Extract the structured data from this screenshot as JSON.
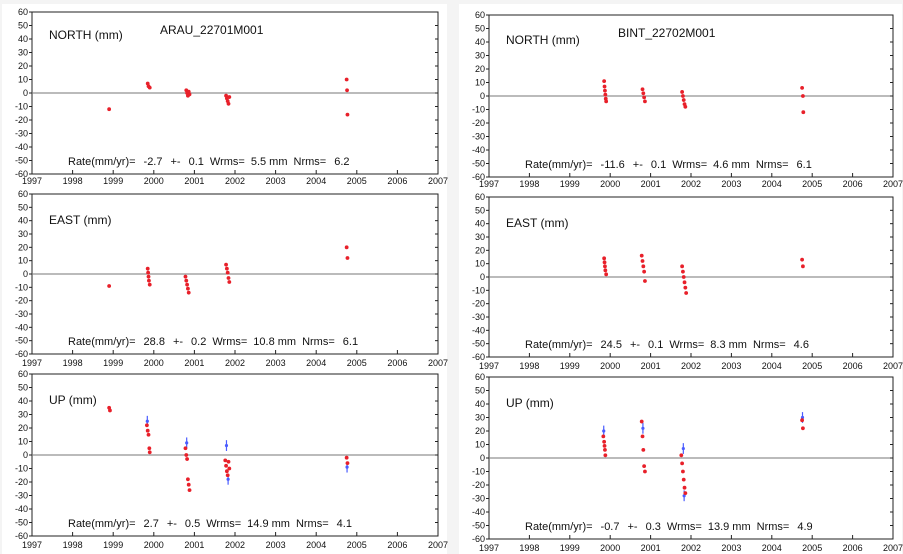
{
  "chart_data": [
    {
      "type": "scatter",
      "station": "ARAU_22701M001",
      "panels": [
        {
          "component": "NORTH (mm)",
          "ylim": [
            -60,
            60
          ],
          "y_ticks": [
            "60",
            "50",
            "40",
            "30",
            "20",
            "10",
            "0",
            "-10",
            "-20",
            "-30",
            "-40",
            "-50",
            "-60"
          ],
          "points": [
            [
              1998.9,
              -12
            ],
            [
              1999.85,
              7
            ],
            [
              1999.87,
              5
            ],
            [
              1999.9,
              4
            ],
            [
              2000.8,
              2
            ],
            [
              2000.82,
              0
            ],
            [
              2000.84,
              -2
            ],
            [
              2000.86,
              1
            ],
            [
              2000.88,
              -1
            ],
            [
              2001.78,
              -2
            ],
            [
              2001.8,
              -4
            ],
            [
              2001.82,
              -6
            ],
            [
              2001.84,
              -8
            ],
            [
              2001.86,
              -3
            ],
            [
              2004.75,
              10
            ],
            [
              2004.76,
              2
            ],
            [
              2004.77,
              -16
            ]
          ],
          "error_points": [],
          "stats": {
            "label": "Rate(mm/yr)=",
            "rate": "-2.7",
            "pm": "+-",
            "sigma": "0.1",
            "wrms_label": "Wrms=",
            "wrms": "5.5 mm",
            "nrms_label": "Nrms=",
            "nrms": "6.2"
          }
        },
        {
          "component": "EAST (mm)",
          "ylim": [
            -60,
            60
          ],
          "y_ticks": [
            "60",
            "50",
            "40",
            "30",
            "20",
            "10",
            "0",
            "-10",
            "-20",
            "-30",
            "-40",
            "-50",
            "-60"
          ],
          "points": [
            [
              1998.9,
              -9
            ],
            [
              1999.85,
              4
            ],
            [
              1999.86,
              1
            ],
            [
              1999.87,
              -2
            ],
            [
              1999.88,
              -5
            ],
            [
              1999.9,
              -8
            ],
            [
              2000.78,
              -2
            ],
            [
              2000.8,
              -5
            ],
            [
              2000.82,
              -8
            ],
            [
              2000.84,
              -11
            ],
            [
              2000.86,
              -14
            ],
            [
              2001.78,
              7
            ],
            [
              2001.8,
              4
            ],
            [
              2001.82,
              1
            ],
            [
              2001.84,
              -3
            ],
            [
              2001.86,
              -6
            ],
            [
              2004.75,
              20
            ],
            [
              2004.77,
              12
            ]
          ],
          "error_points": [],
          "stats": {
            "label": "Rate(mm/yr)=",
            "rate": "28.8",
            "pm": "+-",
            "sigma": "0.2",
            "wrms_label": "Wrms=",
            "wrms": "10.8 mm",
            "nrms_label": "Nrms=",
            "nrms": "6.1"
          }
        },
        {
          "component": "UP (mm)",
          "ylim": [
            -60,
            60
          ],
          "y_ticks": [
            "60",
            "50",
            "40",
            "30",
            "20",
            "10",
            "0",
            "-10",
            "-20",
            "-30",
            "-40",
            "-50",
            "-60"
          ],
          "points": [
            [
              1998.9,
              35
            ],
            [
              1998.92,
              33
            ],
            [
              1999.83,
              22
            ],
            [
              1999.85,
              18
            ],
            [
              1999.87,
              15
            ],
            [
              1999.89,
              5
            ],
            [
              1999.9,
              2
            ],
            [
              2000.78,
              5
            ],
            [
              2000.8,
              0
            ],
            [
              2000.82,
              -3
            ],
            [
              2000.84,
              -18
            ],
            [
              2000.86,
              -22
            ],
            [
              2000.88,
              -26
            ],
            [
              2001.76,
              -4
            ],
            [
              2001.78,
              -8
            ],
            [
              2001.8,
              -12
            ],
            [
              2001.82,
              -15
            ],
            [
              2001.84,
              -5
            ],
            [
              2001.86,
              -10
            ],
            [
              2004.75,
              -2
            ],
            [
              2004.77,
              -6
            ]
          ],
          "error_points": [
            [
              1999.84,
              25
            ],
            [
              2000.81,
              9
            ],
            [
              2001.79,
              7
            ],
            [
              2001.83,
              -18
            ],
            [
              2004.76,
              -9
            ]
          ],
          "stats": {
            "label": "Rate(mm/yr)=",
            "rate": "2.7",
            "pm": "+-",
            "sigma": "0.5",
            "wrms_label": "Wrms=",
            "wrms": "14.9 mm",
            "nrms_label": "Nrms=",
            "nrms": "4.1"
          }
        }
      ],
      "x_ticks": [
        "1997",
        "1998",
        "1999",
        "2000",
        "2001",
        "2002",
        "2003",
        "2004",
        "2005",
        "2006",
        "2007"
      ],
      "xlim": [
        1997,
        2007
      ]
    },
    {
      "type": "scatter",
      "station": "BINT_22702M001",
      "panels": [
        {
          "component": "NORTH (mm)",
          "ylim": [
            -60,
            60
          ],
          "y_ticks": [
            "60",
            "50",
            "40",
            "30",
            "20",
            "10",
            "0",
            "-10",
            "-20",
            "-30",
            "-40",
            "-50",
            "-60"
          ],
          "points": [
            [
              1999.85,
              11
            ],
            [
              1999.86,
              7
            ],
            [
              1999.87,
              4
            ],
            [
              1999.88,
              1
            ],
            [
              1999.89,
              -2
            ],
            [
              1999.9,
              -4
            ],
            [
              2000.8,
              5
            ],
            [
              2000.82,
              2
            ],
            [
              2000.84,
              -1
            ],
            [
              2000.86,
              -4
            ],
            [
              2001.78,
              3
            ],
            [
              2001.8,
              0
            ],
            [
              2001.82,
              -3
            ],
            [
              2001.84,
              -6
            ],
            [
              2001.86,
              -8
            ],
            [
              2004.75,
              6
            ],
            [
              2004.77,
              0
            ],
            [
              2004.78,
              -12
            ]
          ],
          "error_points": [],
          "stats": {
            "label": "Rate(mm/yr)=",
            "rate": "-11.6",
            "pm": "+-",
            "sigma": "0.1",
            "wrms_label": "Wrms=",
            "wrms": "4.6 mm",
            "nrms_label": "Nrms=",
            "nrms": "6.1"
          }
        },
        {
          "component": "EAST (mm)",
          "ylim": [
            -60,
            60
          ],
          "y_ticks": [
            "60",
            "50",
            "40",
            "30",
            "20",
            "10",
            "0",
            "-10",
            "-20",
            "-30",
            "-40",
            "-50",
            "-60"
          ],
          "points": [
            [
              1999.85,
              14
            ],
            [
              1999.86,
              11
            ],
            [
              1999.87,
              8
            ],
            [
              1999.88,
              5
            ],
            [
              1999.9,
              2
            ],
            [
              2000.78,
              16
            ],
            [
              2000.8,
              12
            ],
            [
              2000.82,
              8
            ],
            [
              2000.84,
              4
            ],
            [
              2000.86,
              -3
            ],
            [
              2001.78,
              8
            ],
            [
              2001.8,
              4
            ],
            [
              2001.82,
              0
            ],
            [
              2001.84,
              -4
            ],
            [
              2001.86,
              -8
            ],
            [
              2001.88,
              -12
            ],
            [
              2004.75,
              13
            ],
            [
              2004.77,
              8
            ]
          ],
          "error_points": [],
          "stats": {
            "label": "Rate(mm/yr)=",
            "rate": "24.5",
            "pm": "+-",
            "sigma": "0.1",
            "wrms_label": "Wrms=",
            "wrms": "8.3 mm",
            "nrms_label": "Nrms=",
            "nrms": "4.6"
          }
        },
        {
          "component": "UP (mm)",
          "ylim": [
            -60,
            60
          ],
          "y_ticks": [
            "60",
            "50",
            "40",
            "30",
            "20",
            "10",
            "0",
            "-10",
            "-20",
            "-30",
            "-40",
            "-50",
            "-60"
          ],
          "points": [
            [
              1999.83,
              16
            ],
            [
              1999.85,
              12
            ],
            [
              1999.86,
              9
            ],
            [
              1999.87,
              6
            ],
            [
              1999.88,
              2
            ],
            [
              2000.78,
              27
            ],
            [
              2000.8,
              16
            ],
            [
              2000.82,
              6
            ],
            [
              2000.84,
              -6
            ],
            [
              2000.86,
              -10
            ],
            [
              2001.76,
              2
            ],
            [
              2001.78,
              -4
            ],
            [
              2001.8,
              -10
            ],
            [
              2001.82,
              -16
            ],
            [
              2001.84,
              -22
            ],
            [
              2001.86,
              -26
            ],
            [
              2004.75,
              28
            ],
            [
              2004.77,
              22
            ]
          ],
          "error_points": [
            [
              1999.84,
              20
            ],
            [
              2000.81,
              22
            ],
            [
              2001.81,
              7
            ],
            [
              2001.83,
              -28
            ],
            [
              2004.76,
              30
            ]
          ],
          "stats": {
            "label": "Rate(mm/yr)=",
            "rate": "-0.7",
            "pm": "+-",
            "sigma": "0.3",
            "wrms_label": "Wrms=",
            "wrms": "13.9 mm",
            "nrms_label": "Nrms=",
            "nrms": "4.9"
          }
        }
      ],
      "x_ticks": [
        "1997",
        "1998",
        "1999",
        "2000",
        "2001",
        "2002",
        "2003",
        "2004",
        "2005",
        "2006",
        "2007"
      ],
      "xlim": [
        1997,
        2007
      ]
    }
  ],
  "colors": {
    "points": "#e8202a",
    "error_bars": "#4a5cff",
    "zero_line": "#777777",
    "frame": "#222222",
    "background": "#ffffff"
  }
}
